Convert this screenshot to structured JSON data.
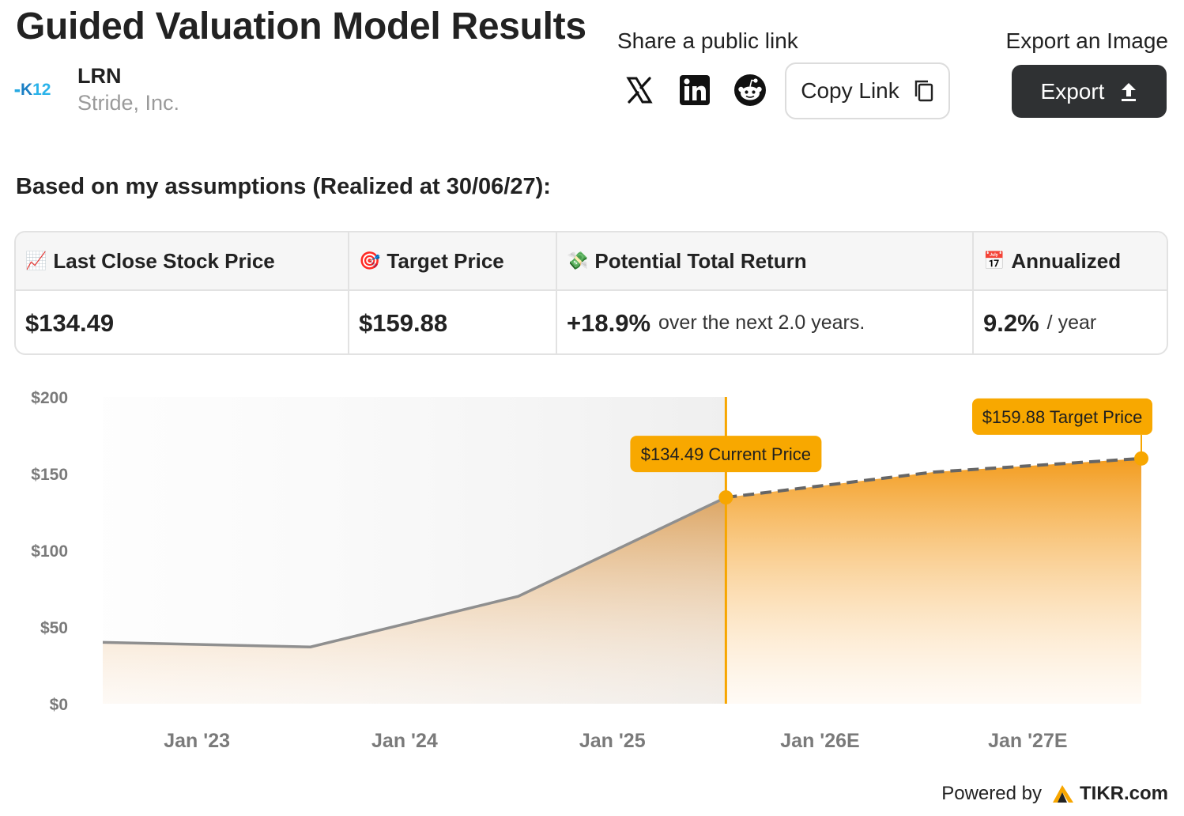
{
  "header": {
    "title": "Guided Valuation Model Results",
    "logo_text_a": "K",
    "logo_text_b": "12",
    "ticker": "LRN",
    "company_name": "Stride, Inc."
  },
  "share": {
    "label": "Share a public link",
    "icons": [
      "x-icon",
      "linkedin-icon",
      "reddit-icon"
    ],
    "copy_label": "Copy Link"
  },
  "export": {
    "label": "Export an Image",
    "button_label": "Export"
  },
  "assumptions_text": "Based on my assumptions (Realized at 30/06/27):",
  "results": {
    "last_close": {
      "emoji": "📈",
      "label": "Last Close Stock Price",
      "value": "$134.49"
    },
    "target": {
      "emoji": "🎯",
      "label": "Target Price",
      "value": "$159.88"
    },
    "total_return": {
      "emoji": "💸",
      "label": "Potential Total Return",
      "value": "+18.9%",
      "sub": "over the next 2.0 years."
    },
    "annualized": {
      "emoji": "📅",
      "label": "Annualized",
      "value": "9.2%",
      "sub": "/ year"
    }
  },
  "chart_data": {
    "type": "area",
    "y_ticks": [
      "$0",
      "$50",
      "$100",
      "$150",
      "$200"
    ],
    "y_tick_values": [
      0,
      50,
      100,
      150,
      200
    ],
    "ylim": [
      0,
      200
    ],
    "x_ticks": [
      "Jan '23",
      "Jan '24",
      "Jan '25",
      "Jan '26E",
      "Jan '27E"
    ],
    "x_tick_values": [
      2023.0,
      2024.0,
      2025.0,
      2026.0,
      2027.0
    ],
    "xlim": [
      2022.6,
      2027.6
    ],
    "historical": [
      {
        "x": 2022.6,
        "y": 40
      },
      {
        "x": 2023.6,
        "y": 37
      },
      {
        "x": 2024.6,
        "y": 70
      },
      {
        "x": 2025.6,
        "y": 134.49
      }
    ],
    "projected": [
      {
        "x": 2025.6,
        "y": 134.49
      },
      {
        "x": 2026.6,
        "y": 151
      },
      {
        "x": 2027.6,
        "y": 159.88
      }
    ],
    "annotations": [
      {
        "label": "$134.49 Current Price",
        "x": 2025.6,
        "y": 134.49
      },
      {
        "label": "$159.88 Target Price",
        "x": 2027.6,
        "y": 159.88
      }
    ],
    "colors": {
      "accent": "#f7a600",
      "historical_line": "#8f8f8f",
      "projected_line": "#666666",
      "label_bg": "#f8a800"
    },
    "grid": false
  },
  "footer": {
    "powered_by": "Powered by",
    "brand": "TIKR.com"
  }
}
